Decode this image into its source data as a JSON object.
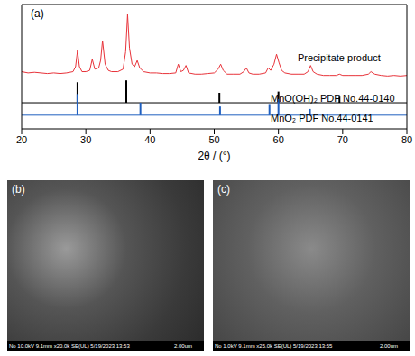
{
  "chart_data": {
    "type": "line",
    "title": "(a)",
    "x_label": "2θ / (°)",
    "xlim": [
      20,
      80
    ],
    "xticks": [
      20,
      30,
      40,
      50,
      60,
      70,
      80
    ],
    "ylim": [
      0,
      100
    ],
    "tick_labels": "x",
    "series": [
      {
        "name": "Precipitate product",
        "type": "line",
        "color": "#e8333a",
        "x": [
          20,
          21,
          22,
          23,
          24,
          25,
          26,
          27,
          28,
          28.4,
          28.7,
          29,
          29.4,
          30,
          30.6,
          31,
          31.4,
          32,
          32.3,
          32.6,
          33,
          33.5,
          34,
          35,
          35.8,
          36.2,
          36.5,
          36.8,
          37.2,
          37.6,
          38,
          38.4,
          39,
          40,
          41,
          42,
          43,
          44,
          44.4,
          44.8,
          45.2,
          45.6,
          46,
          47,
          48,
          49,
          50,
          50.6,
          51,
          51.4,
          52,
          53,
          54,
          54.6,
          55,
          55.4,
          56,
          57,
          58,
          58.4,
          58.8,
          59.3,
          59.7,
          60.1,
          60.5,
          61,
          62,
          63,
          64,
          64.6,
          65,
          65.4,
          66,
          67,
          68,
          69,
          69.5,
          70,
          71,
          72,
          73,
          74,
          74.4,
          75,
          76,
          77,
          78,
          79,
          80
        ],
        "values": [
          46,
          45,
          45.5,
          45,
          44.5,
          45,
          44.5,
          45,
          46,
          50,
          63,
          50,
          46,
          46,
          47,
          56,
          48,
          49,
          55,
          71,
          52,
          47,
          46,
          46,
          48,
          62,
          92,
          65,
          52,
          50,
          55,
          49,
          46,
          45,
          45,
          44.5,
          44.5,
          45,
          52,
          46,
          47,
          51,
          45,
          44,
          44,
          44.5,
          45,
          48,
          52,
          47,
          44,
          44,
          44,
          46,
          49,
          45,
          44,
          44,
          45,
          49,
          47,
          52,
          60,
          53,
          47,
          45,
          44,
          44,
          44,
          46,
          51,
          46,
          44,
          43,
          43,
          43,
          44,
          43,
          43,
          43,
          43,
          44,
          46,
          44,
          43,
          42.5,
          43,
          42.5,
          43
        ]
      },
      {
        "name": "MnO(OH)₂ PDF No.44-0140",
        "type": "stick",
        "color": "#000000",
        "baseline": 21,
        "x": [
          28.7,
          36.3,
          50.8,
          60,
          69.5
        ],
        "values": [
          37.5,
          39,
          29,
          30,
          26
        ]
      },
      {
        "name": "MnO₂ PDF No.44-0141",
        "type": "stick",
        "color": "#1f5fbf",
        "baseline": 11,
        "x": [
          28.7,
          38.5,
          50.9,
          58.6,
          60,
          64.9
        ],
        "values": [
          28,
          21,
          18,
          20,
          24,
          16
        ]
      }
    ]
  },
  "images": [
    {
      "label": "(b)",
      "caption": "No 10.0kV 9.1mm x20.0k SE(UL) 5/19/2023 13:53",
      "scale_bar": "2.00um"
    },
    {
      "label": "(c)",
      "caption": "No 1.0kV 9.1mm x25.0k SE(UL) 5/19/2023 13:55",
      "scale_bar": "2.00um"
    }
  ]
}
